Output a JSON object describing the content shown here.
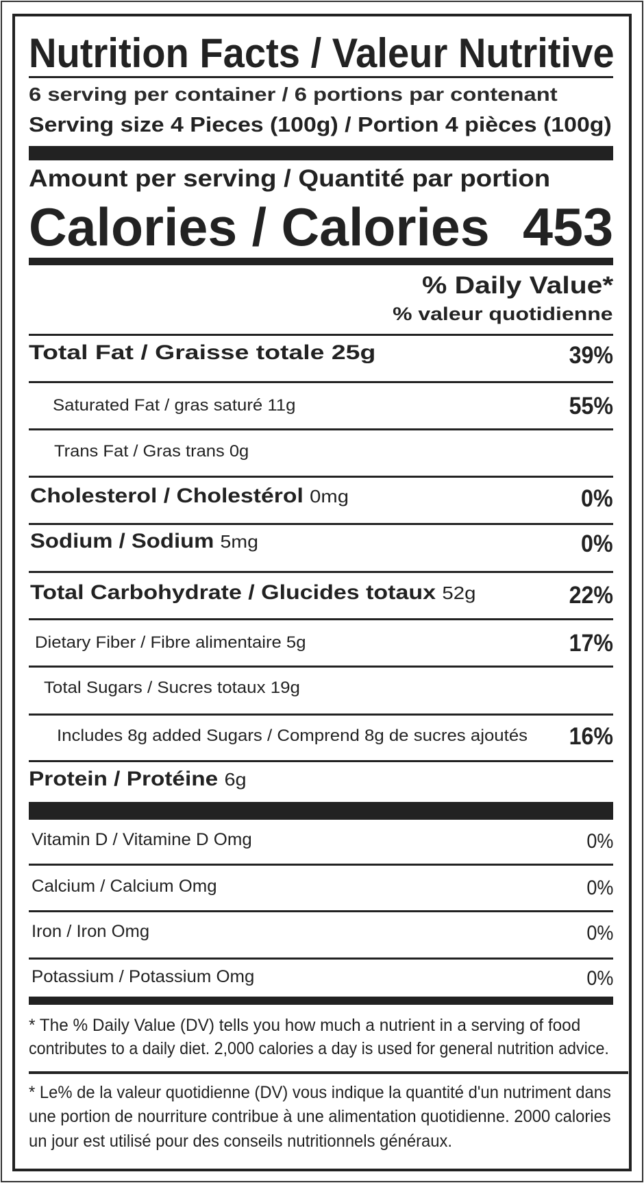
{
  "title": "Nutrition Facts / Valeur Nutritive",
  "servings_per_container": "6 serving per container / 6 portions par contenant",
  "serving_size": "Serving size  4 Pieces (100g) / Portion 4 pièces (100g)",
  "amount_per_serving": "Amount per serving / Quantité par portion",
  "calories": {
    "label": "Calories / Calories",
    "value": "453"
  },
  "daily_value_header": {
    "en": "% Daily Value*",
    "fr": "% valeur quotidienne"
  },
  "nutrients": [
    {
      "name": "Total Fat / Graisse totale 25g",
      "amount": "",
      "dv": "39%"
    },
    {
      "name": "Saturated Fat / gras saturé 11g",
      "amount": "",
      "dv": "55%"
    },
    {
      "name": "Trans Fat / Gras trans 0g",
      "amount": "",
      "dv": ""
    },
    {
      "name": "Cholesterol / Cholestérol ",
      "amount": "0mg",
      "dv": "0%"
    },
    {
      "name": "Sodium / Sodium ",
      "amount": "5mg",
      "dv": "0%"
    },
    {
      "name": "Total Carbohydrate / Glucides totaux ",
      "amount": "52g",
      "dv": "22%"
    },
    {
      "name": "Dietary Fiber / Fibre alimentaire 5g",
      "amount": "",
      "dv": "17%"
    },
    {
      "name": "Total Sugars / Sucres totaux 19g",
      "amount": "",
      "dv": ""
    },
    {
      "name": "Includes 8g added Sugars / Comprend 8g de sucres ajoutés",
      "amount": "",
      "dv": "16%"
    },
    {
      "name": "Protein / Protéine ",
      "amount": "6g",
      "dv": ""
    }
  ],
  "vitamins": [
    {
      "name": "Vitamin D / Vitamine D Omg",
      "dv": "0%"
    },
    {
      "name": "Calcium / Calcium Omg",
      "dv": "0%"
    },
    {
      "name": "Iron / Iron Omg",
      "dv": "0%"
    },
    {
      "name": "Potassium / Potassium Omg",
      "dv": "0%"
    }
  ],
  "footnote_en": [
    "* The % Daily Value (DV) tells you how much a nutrient in a serving of food",
    "contributes to a daily diet. 2,000 calories a day is used for general nutrition advice."
  ],
  "footnote_fr": [
    "* Le% de la valeur quotidienne (DV) vous indique la quantité d'un nutriment dans",
    "une portion de nourriture contribue à une alimentation quotidienne. 2000 calories",
    "un jour est utilisé pour des conseils nutritionnels généraux."
  ]
}
